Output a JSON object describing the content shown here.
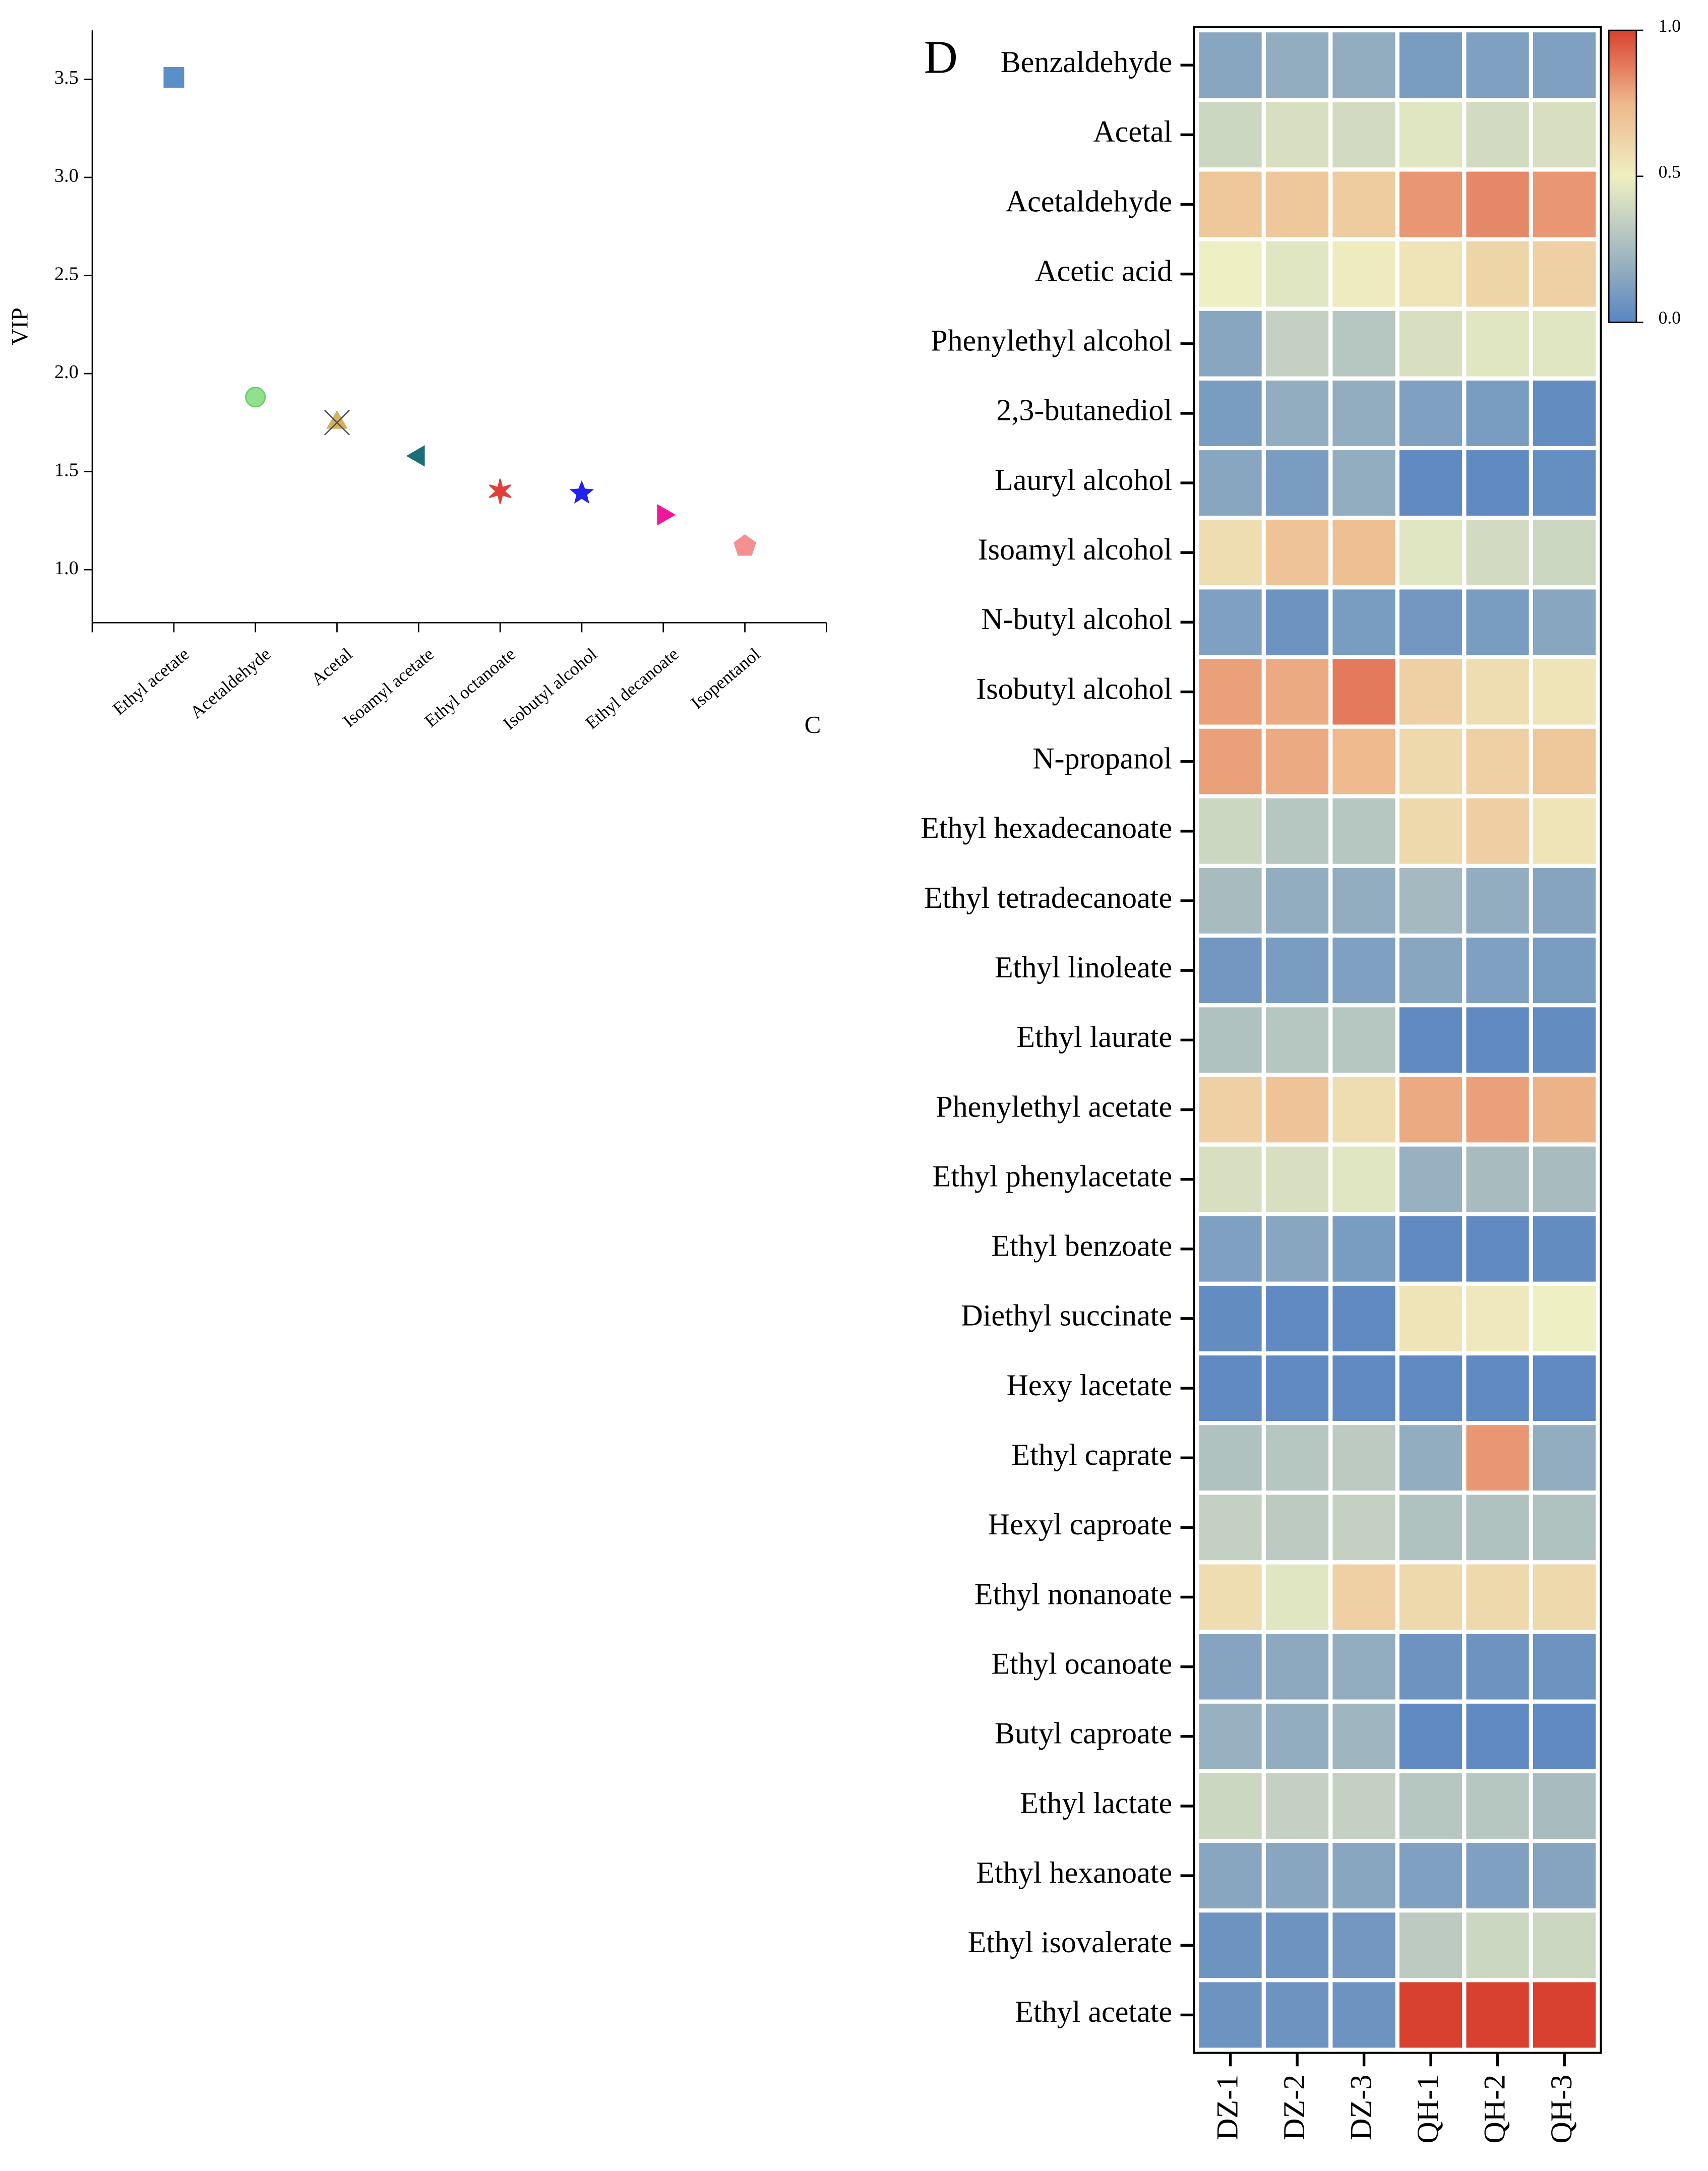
{
  "chart_data": [
    {
      "type": "scatter",
      "panel_label": "C",
      "y_label": "VIP",
      "categories": [
        "Ethyl acetate",
        "Acetaldehyde",
        "Acetal",
        "Isoamyl acetate",
        "Ethyl octanoate",
        "Isobutyl alcohol",
        "Ethyl decanoate",
        "Isopentanol"
      ],
      "values": [
        3.51,
        1.88,
        1.75,
        1.58,
        1.4,
        1.39,
        1.28,
        1.12
      ],
      "colors": [
        "#5b8fc9",
        "#90e090",
        "#d4b060",
        "#1a6e78",
        "#e0403a",
        "#2020f0",
        "#f0189a",
        "#f49090"
      ],
      "markers": [
        "square",
        "circle",
        "triangle-x",
        "triangle-left",
        "asterisk",
        "star",
        "triangle-right",
        "pentagon"
      ],
      "ylim": [
        0.73,
        3.75
      ],
      "yticks": [
        {
          "value": 1,
          "label": "1.0"
        },
        1.5,
        {
          "value": 2,
          "label": "2.0"
        },
        2.5,
        {
          "value": 3,
          "label": "3.0"
        },
        3.5
      ]
    },
    {
      "type": "heatmap",
      "panel_label": "D",
      "rows": [
        "Benzaldehyde",
        "Acetal",
        "Acetaldehyde",
        "Acetic acid",
        "Phenylethyl alcohol",
        "2,3-butanediol",
        "Lauryl alcohol",
        "Isoamyl alcohol",
        "N-butyl alcohol",
        "Isobutyl alcohol",
        "N-propanol",
        "Ethyl hexadecanoate",
        "Ethyl tetradecanoate",
        "Ethyl linoleate",
        "Ethyl laurate",
        "Phenylethyl acetate",
        "Ethyl phenylacetate",
        "Ethyl benzoate",
        "Diethyl succinate",
        "Hexy lacetate",
        "Ethyl caprate",
        "Hexyl caproate",
        "Ethyl nonanoate",
        "Ethyl ocanoate",
        "Butyl caproate",
        "Ethyl lactate",
        "Ethyl hexanoate",
        "Ethyl isovalerate",
        "Ethyl acetate"
      ],
      "columns": [
        "DZ-1",
        "DZ-2",
        "DZ-3",
        "QH-1",
        "QH-2",
        "QH-3"
      ],
      "values": [
        [
          0.15,
          0.18,
          0.18,
          0.1,
          0.12,
          0.12
        ],
        [
          0.38,
          0.42,
          0.4,
          0.45,
          0.4,
          0.42
        ],
        [
          0.68,
          0.68,
          0.66,
          0.82,
          0.85,
          0.82
        ],
        [
          0.5,
          0.45,
          0.52,
          0.55,
          0.62,
          0.64
        ],
        [
          0.15,
          0.35,
          0.3,
          0.42,
          0.45,
          0.45
        ],
        [
          0.1,
          0.18,
          0.18,
          0.12,
          0.1,
          0.03
        ],
        [
          0.15,
          0.1,
          0.18,
          0.02,
          0.02,
          0.04
        ],
        [
          0.58,
          0.7,
          0.72,
          0.45,
          0.4,
          0.38
        ],
        [
          0.12,
          0.06,
          0.1,
          0.08,
          0.1,
          0.15
        ],
        [
          0.8,
          0.78,
          0.88,
          0.64,
          0.58,
          0.55
        ],
        [
          0.8,
          0.78,
          0.74,
          0.6,
          0.64,
          0.68
        ],
        [
          0.38,
          0.3,
          0.3,
          0.6,
          0.65,
          0.55
        ],
        [
          0.25,
          0.18,
          0.18,
          0.24,
          0.18,
          0.14
        ],
        [
          0.08,
          0.1,
          0.12,
          0.15,
          0.12,
          0.1
        ],
        [
          0.28,
          0.3,
          0.3,
          0.02,
          0.02,
          0.03
        ],
        [
          0.64,
          0.7,
          0.58,
          0.78,
          0.8,
          0.76
        ],
        [
          0.42,
          0.42,
          0.45,
          0.2,
          0.25,
          0.25
        ],
        [
          0.12,
          0.15,
          0.1,
          0.02,
          0.02,
          0.03
        ],
        [
          0.03,
          0.02,
          0.02,
          0.55,
          0.53,
          0.5
        ],
        [
          0.02,
          0.02,
          0.02,
          0.02,
          0.02,
          0.02
        ],
        [
          0.28,
          0.3,
          0.32,
          0.18,
          0.82,
          0.18
        ],
        [
          0.35,
          0.32,
          0.35,
          0.28,
          0.28,
          0.28
        ],
        [
          0.58,
          0.45,
          0.64,
          0.6,
          0.6,
          0.6
        ],
        [
          0.14,
          0.16,
          0.18,
          0.06,
          0.06,
          0.06
        ],
        [
          0.2,
          0.18,
          0.22,
          0.02,
          0.02,
          0.02
        ],
        [
          0.38,
          0.35,
          0.35,
          0.3,
          0.3,
          0.25
        ],
        [
          0.15,
          0.15,
          0.15,
          0.12,
          0.12,
          0.14
        ],
        [
          0.06,
          0.06,
          0.08,
          0.32,
          0.38,
          0.38
        ],
        [
          0.06,
          0.06,
          0.06,
          1.0,
          1.0,
          1.0
        ]
      ],
      "colormap": [
        "#5a86c1",
        "#a8bcc0",
        "#eeefc2",
        "#eeb88c",
        "#d8412f"
      ],
      "clim": [
        0,
        1
      ],
      "cticks": [
        {
          "value": 0,
          "label": "0.0"
        },
        0.5,
        {
          "value": 1,
          "label": "1.0"
        }
      ]
    }
  ]
}
